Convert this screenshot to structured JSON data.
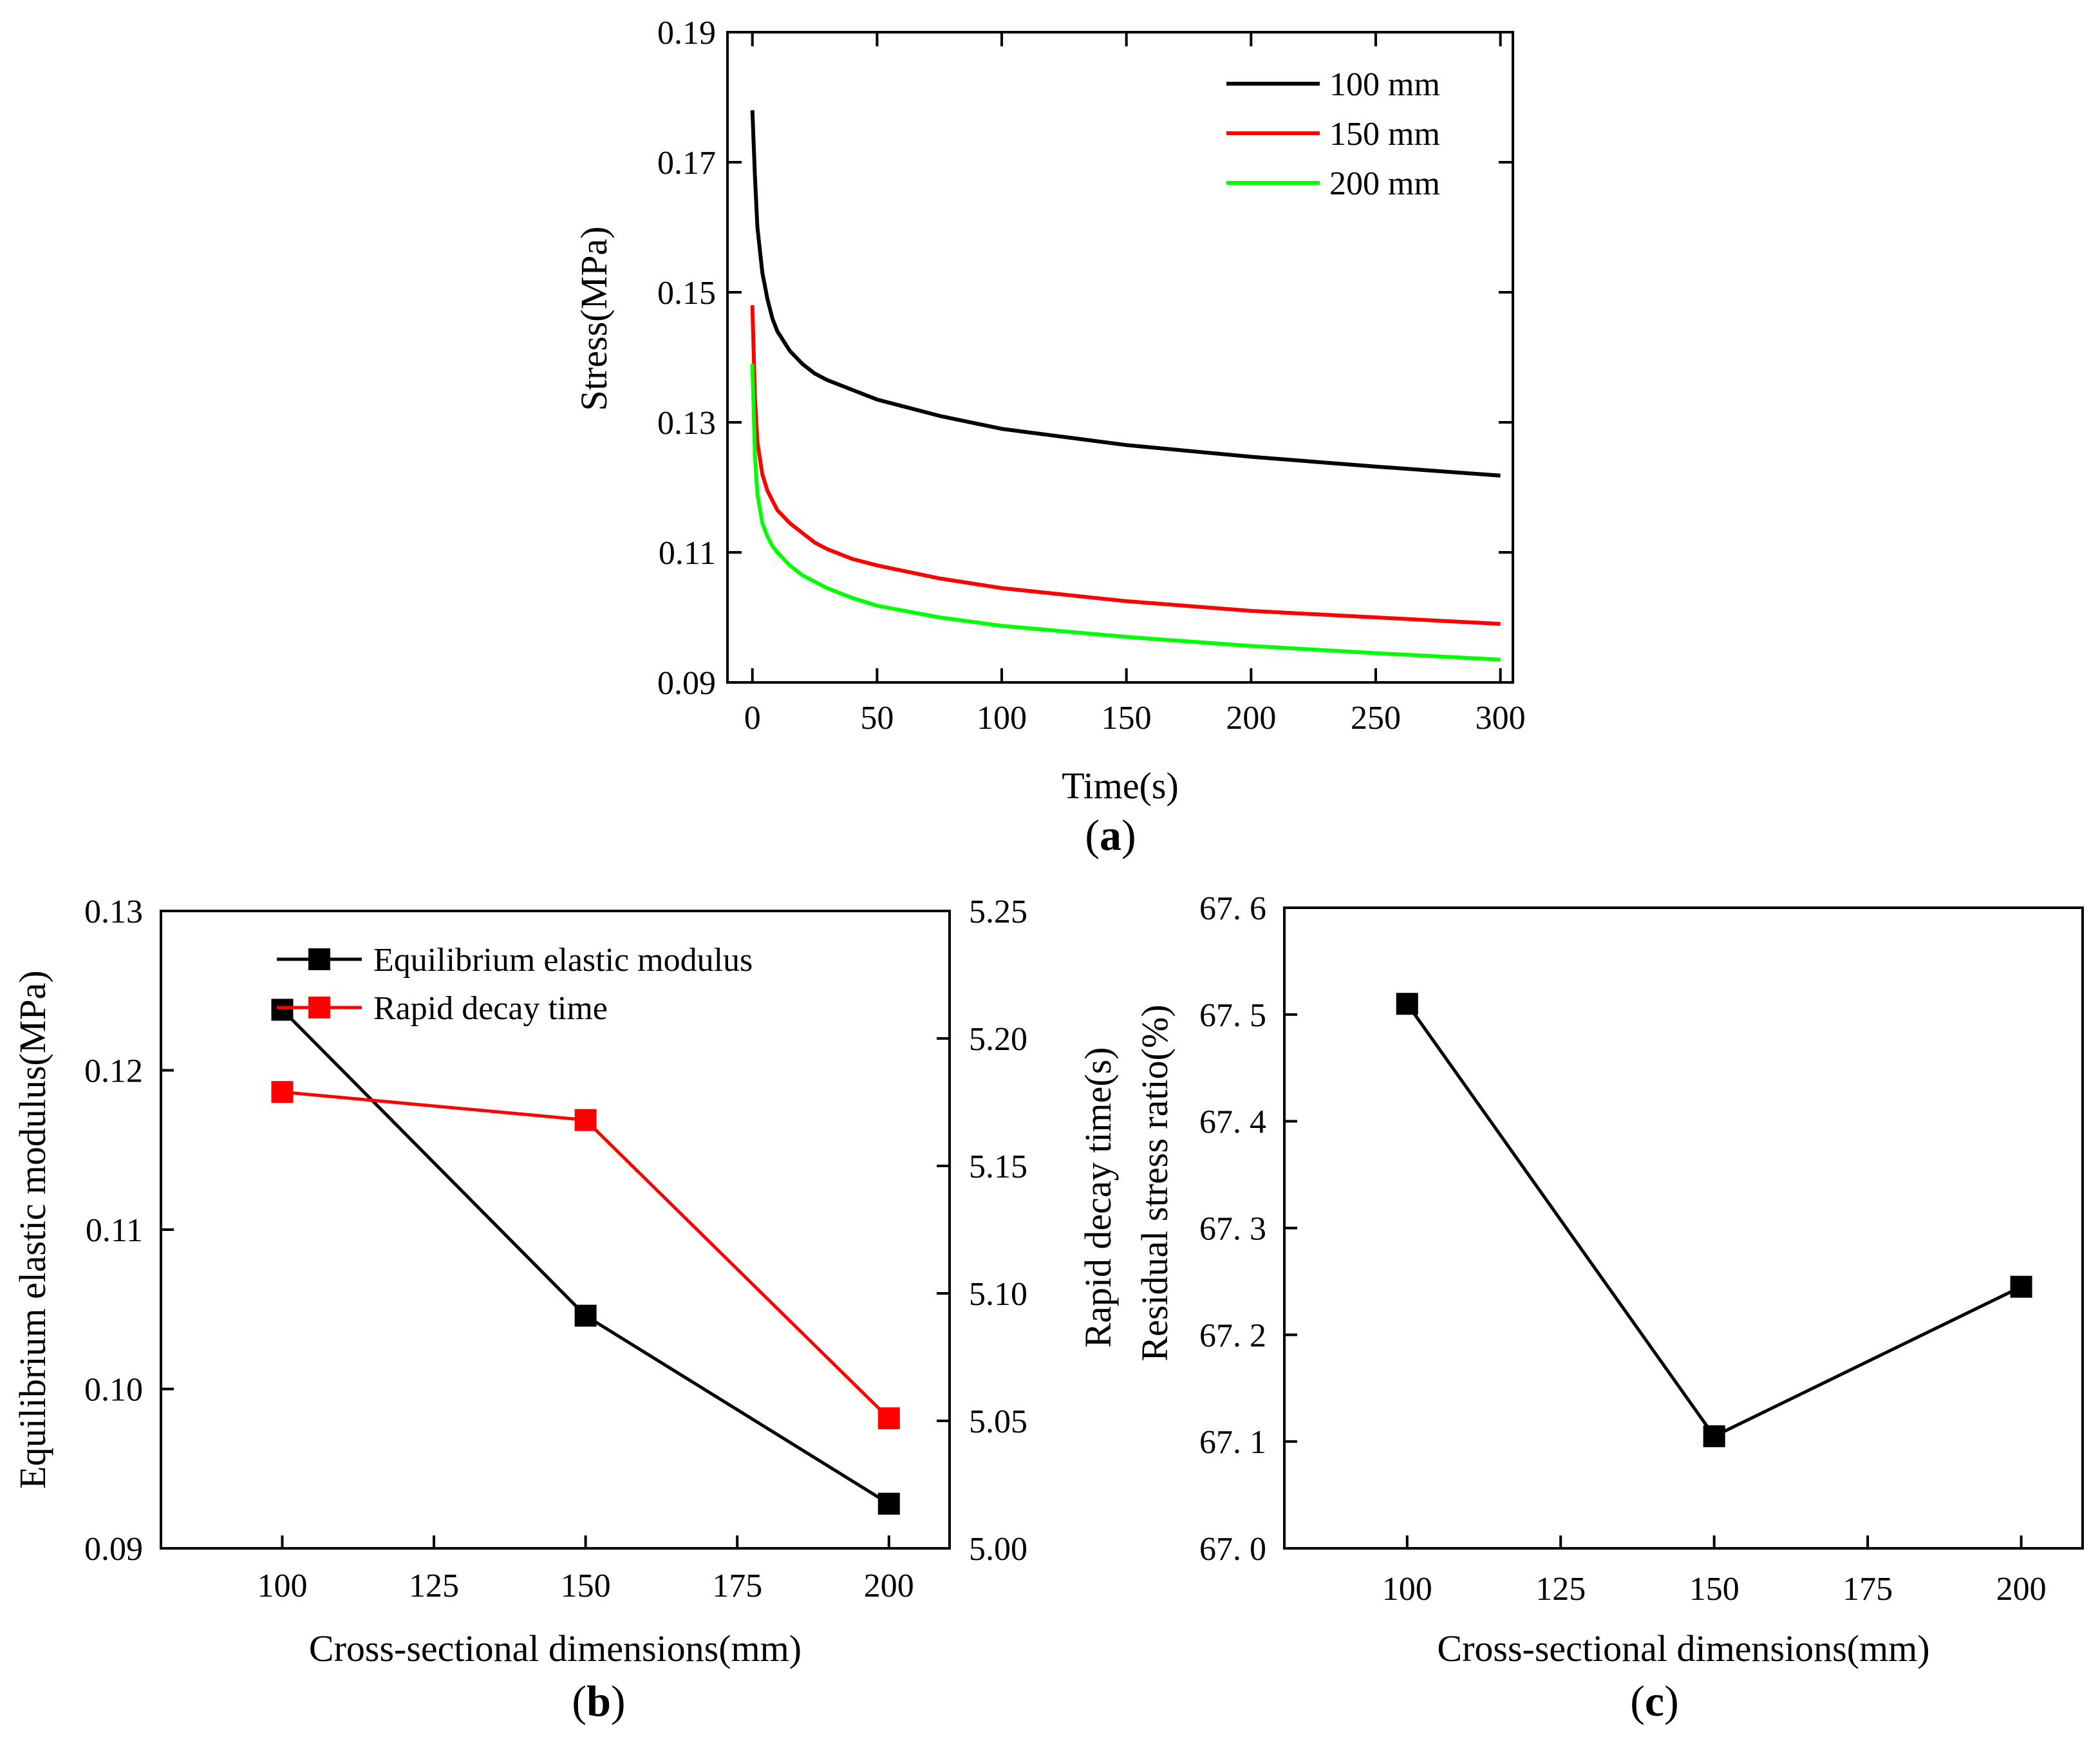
{
  "chart_data": [
    {
      "id": "a",
      "type": "line",
      "panel_label": "a",
      "xlabel": "Time(s)",
      "ylabel": "Stress(MPa)",
      "xlim": [
        -10,
        305
      ],
      "ylim": [
        0.09,
        0.19
      ],
      "xticks": [
        "0",
        "50",
        "100",
        "150",
        "200",
        "250",
        "300"
      ],
      "yticks": [
        "0.09",
        "0.11",
        "0.13",
        "0.15",
        "0.17",
        "0.19"
      ],
      "legend_position": "top-right",
      "series": [
        {
          "name": "100 mm",
          "color": "#000000",
          "x": [
            0,
            1,
            2,
            4,
            6,
            8,
            10,
            15,
            20,
            25,
            30,
            40,
            50,
            75,
            100,
            150,
            200,
            250,
            300
          ],
          "y": [
            0.178,
            0.168,
            0.16,
            0.153,
            0.149,
            0.146,
            0.144,
            0.141,
            0.139,
            0.1375,
            0.1365,
            0.135,
            0.1335,
            0.131,
            0.129,
            0.1265,
            0.1247,
            0.1232,
            0.1218
          ]
        },
        {
          "name": "150 mm",
          "color": "#ff0000",
          "x": [
            0,
            1,
            2,
            4,
            6,
            8,
            10,
            15,
            20,
            25,
            30,
            40,
            50,
            75,
            100,
            150,
            200,
            250,
            300
          ],
          "y": [
            0.148,
            0.134,
            0.127,
            0.122,
            0.1195,
            0.118,
            0.1165,
            0.1145,
            0.113,
            0.1115,
            0.1105,
            0.109,
            0.108,
            0.106,
            0.1045,
            0.1025,
            0.101,
            0.1,
            0.099
          ]
        },
        {
          "name": "200 mm",
          "color": "#00ff00",
          "x": [
            0,
            1,
            2,
            4,
            6,
            8,
            10,
            15,
            20,
            25,
            30,
            40,
            50,
            75,
            100,
            150,
            200,
            250,
            300
          ],
          "y": [
            0.139,
            0.125,
            0.119,
            0.1145,
            0.1125,
            0.111,
            0.11,
            0.108,
            0.1065,
            0.1055,
            0.1045,
            0.103,
            0.1018,
            0.1,
            0.0987,
            0.097,
            0.0956,
            0.0945,
            0.0935
          ]
        }
      ]
    },
    {
      "id": "b",
      "type": "line",
      "panel_label": "b",
      "xlabel": "Cross-sectional dimensions(mm)",
      "ylabel": "Equilibrium elastic modulus(MPa)",
      "y2label": "Rapid decay time(s)",
      "categories": [
        100,
        150,
        200
      ],
      "xlim": [
        80,
        210
      ],
      "ylim": [
        0.09,
        0.13
      ],
      "y2lim": [
        5.0,
        5.25
      ],
      "xticks": [
        "100",
        "125",
        "150",
        "175",
        "200"
      ],
      "yticks": [
        "0.09",
        "0.10",
        "0.11",
        "0.12",
        "0.13"
      ],
      "y2ticks": [
        "5.00",
        "5.05",
        "5.10",
        "5.15",
        "5.20",
        "5.25"
      ],
      "legend_position": "top-left",
      "series": [
        {
          "name": "Equilibrium elastic modulus",
          "color": "#000000",
          "axis": "left",
          "values": [
            0.1238,
            0.1046,
            0.0928
          ]
        },
        {
          "name": "Rapid decay time",
          "color": "#ff0000",
          "axis": "right",
          "values": [
            5.179,
            5.168,
            5.051
          ]
        }
      ]
    },
    {
      "id": "c",
      "type": "line",
      "panel_label": "c",
      "xlabel": "Cross-sectional dimensions(mm)",
      "ylabel": "Residual stress ratio(%)",
      "categories": [
        100,
        150,
        200
      ],
      "xlim": [
        80,
        210
      ],
      "ylim": [
        67.0,
        67.6
      ],
      "xticks": [
        "100",
        "125",
        "150",
        "175",
        "200"
      ],
      "yticks": [
        "67. 0",
        "67. 1",
        "67. 2",
        "67. 3",
        "67. 4",
        "67. 5",
        "67. 6"
      ],
      "series": [
        {
          "name": "Residual stress ratio",
          "color": "#000000",
          "values": [
            67.51,
            67.105,
            67.245
          ]
        }
      ]
    }
  ]
}
